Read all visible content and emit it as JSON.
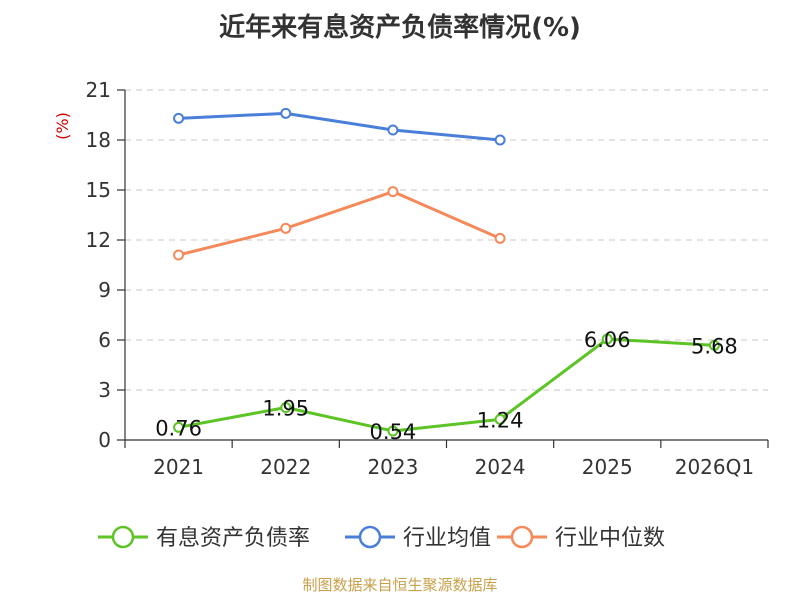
{
  "chart_data": {
    "type": "line",
    "title": "近年来有息资产负债率情况(%)",
    "ylabel": "(%)",
    "categories": [
      "2021",
      "2022",
      "2023",
      "2024",
      "2025",
      "2026Q1"
    ],
    "yticks": [
      "0",
      "3",
      "6",
      "9",
      "12",
      "15",
      "18",
      "21"
    ],
    "ylim": [
      0,
      21
    ],
    "grid": "horizontal dashed",
    "legend_position": "bottom",
    "series": [
      {
        "name": "有息资产负债率",
        "color": "#5cc424",
        "values": [
          0.76,
          1.95,
          0.54,
          1.24,
          6.06,
          5.68
        ],
        "labels": [
          "0.76",
          "1.95",
          "0.54",
          "1.24",
          "6.06",
          "5.68"
        ]
      },
      {
        "name": "行业均值",
        "color": "#4a7fd9",
        "values": [
          19.3,
          19.6,
          18.6,
          18.0,
          null,
          null
        ]
      },
      {
        "name": "行业中位数",
        "color": "#f5895a",
        "values": [
          11.1,
          12.7,
          14.9,
          12.1,
          null,
          null
        ]
      }
    ]
  },
  "footer": {
    "source": "制图数据来自恒生聚源数据库"
  }
}
